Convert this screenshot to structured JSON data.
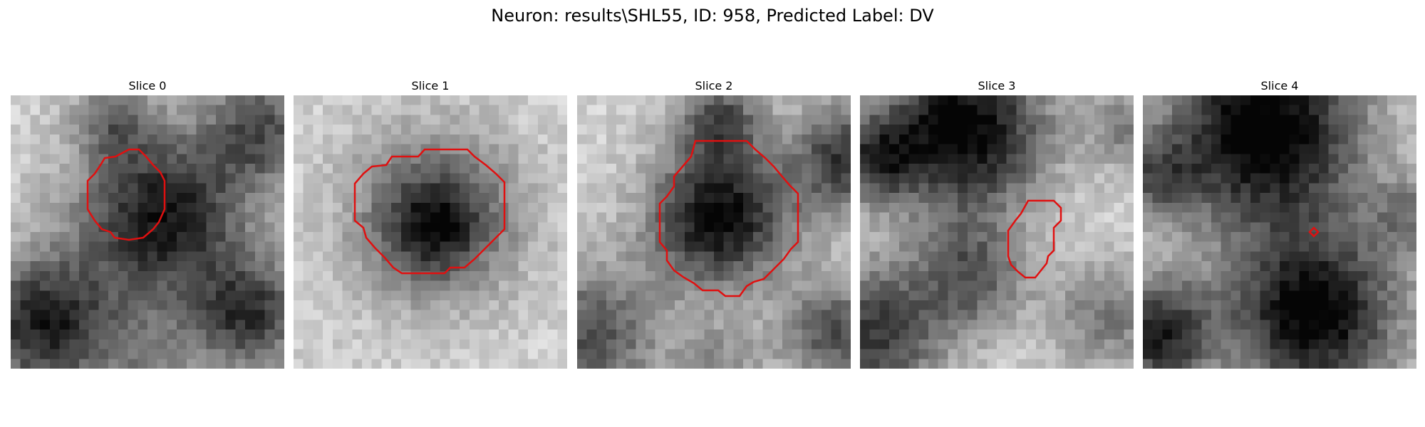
{
  "figure": {
    "title": "Neuron: results\\SHL55, ID: 958, Predicted Label: DV"
  },
  "contour_color": "#e01010",
  "panels": [
    {
      "label": "Slice 0"
    },
    {
      "label": "Slice 1"
    },
    {
      "label": "Slice 2"
    },
    {
      "label": "Slice 3"
    },
    {
      "label": "Slice 4"
    }
  ]
}
